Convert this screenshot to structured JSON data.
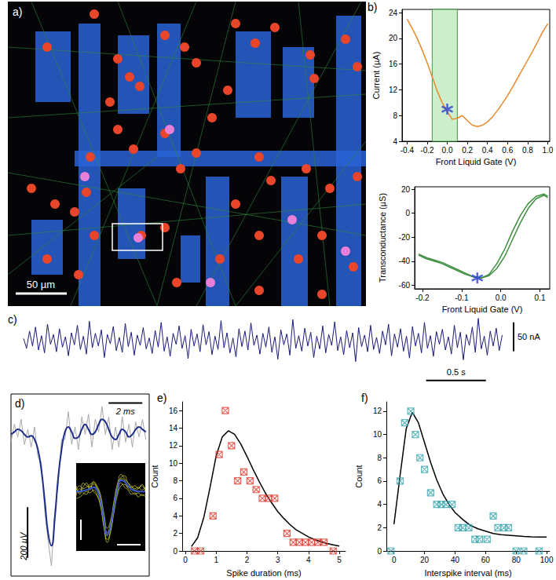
{
  "chart_data": [
    {
      "panel": "a)",
      "type": "image",
      "scale_bar_label": "50 µm"
    },
    {
      "panel": "b)",
      "type": "line",
      "x_label": "Front Liquid Gate (V)",
      "y_label": "Current (µA)",
      "x": [
        -0.4,
        -0.35,
        -0.3,
        -0.25,
        -0.2,
        -0.15,
        -0.1,
        -0.05,
        0,
        0.05,
        0.1,
        0.15,
        0.2,
        0.25,
        0.3,
        0.35,
        0.4,
        0.45,
        0.5,
        0.55,
        0.6,
        0.65,
        0.7,
        0.75,
        0.8,
        0.85,
        0.9,
        0.95,
        1.0
      ],
      "series": [
        {
          "color": "#e8892b",
          "values": [
            23.0,
            21.6,
            20.0,
            18.2,
            16.2,
            14.0,
            11.8,
            10.0,
            8.6,
            7.4,
            7.6,
            8.0,
            7.2,
            6.5,
            6.3,
            6.5,
            7.0,
            7.8,
            8.8,
            9.9,
            11.1,
            12.4,
            13.8,
            15.2,
            16.6,
            18.0,
            19.5,
            21.0,
            22.3
          ]
        }
      ],
      "shaded_range": [
        -0.15,
        0.1
      ],
      "shaded_color": "#cdeecb",
      "annotations": [
        {
          "x": 0,
          "y": 9,
          "marker": "asterisk",
          "color": "#2a3fd0"
        }
      ],
      "xlim": [
        -0.45,
        1.02
      ],
      "xticks": [
        -0.4,
        -0.2,
        {
          "value": 0,
          "label": "0.0"
        },
        0.2,
        0.4,
        0.6,
        0.8,
        {
          "value": 1,
          "label": "1.0"
        }
      ],
      "ylim": [
        4,
        24.5
      ],
      "yticks": [
        4,
        8,
        12,
        16,
        20,
        24
      ],
      "grid": false
    },
    {
      "type": "line",
      "x_label": "Front Liquid Gate (V)",
      "y_label": "Transconductance (µS)",
      "x": [
        -0.21,
        -0.19,
        -0.17,
        -0.15,
        -0.13,
        -0.11,
        -0.09,
        -0.07,
        -0.05,
        -0.03,
        -0.01,
        0.01,
        0.03,
        0.05,
        0.07,
        0.09,
        0.11,
        0.12
      ],
      "series": [
        {
          "color": "#3d8f3d",
          "values": [
            -34,
            -37,
            -39,
            -41,
            -44,
            -47,
            -50,
            -53,
            -54,
            -52,
            -46,
            -36,
            -22,
            -8,
            4,
            12,
            15,
            13
          ]
        },
        {
          "color": "#3d8f3d",
          "values": [
            -35,
            -38,
            -40,
            -42,
            -45,
            -48,
            -51,
            -53,
            -54,
            -51,
            -42,
            -30,
            -15,
            -2,
            8,
            14,
            16,
            14
          ]
        }
      ],
      "annotations": [
        {
          "x": -0.06,
          "y": -54,
          "marker": "asterisk",
          "color": "#2a3fd0"
        }
      ],
      "xlim": [
        -0.22,
        0.125
      ],
      "xticks": [
        -0.2,
        -0.1,
        {
          "value": 0,
          "label": "0.0"
        },
        0.1
      ],
      "ylim": [
        -63,
        22
      ],
      "yticks": [
        -60,
        -40,
        -20,
        0,
        20
      ],
      "grid": false
    },
    {
      "panel": "c)",
      "type": "line",
      "tick_labels": false,
      "x": [
        0,
        0.025,
        0.05,
        0.075,
        0.1,
        0.125,
        0.15,
        0.175,
        0.2,
        0.225,
        0.25,
        0.275,
        0.3,
        0.325,
        0.35,
        0.375,
        0.4,
        0.425,
        0.45,
        0.475,
        0.5,
        0.525,
        0.55,
        0.575,
        0.6,
        0.625,
        0.65,
        0.675,
        0.7,
        0.725,
        0.75,
        0.775,
        0.8,
        0.825,
        0.85,
        0.875,
        0.9,
        0.925,
        0.95,
        0.975,
        1,
        1.025,
        1.05,
        1.075,
        1.1,
        1.125,
        1.15,
        1.175,
        1.2,
        1.225,
        1.25,
        1.275,
        1.3,
        1.325,
        1.35,
        1.375,
        1.4,
        1.425,
        1.45,
        1.475,
        1.5,
        1.525,
        1.55,
        1.575,
        1.6,
        1.625,
        1.65,
        1.675,
        1.7,
        1.725,
        1.75,
        1.775,
        1.8,
        1.825,
        1.85,
        1.875,
        1.9,
        1.925,
        1.95,
        1.975,
        2,
        2.025,
        2.05,
        2.075,
        2.1,
        2.125,
        2.15,
        2.175,
        2.2,
        2.225,
        2.25,
        2.275,
        2.3,
        2.325,
        2.35,
        2.375,
        2.4,
        2.425,
        2.45,
        2.475,
        2.5,
        2.525,
        2.55,
        2.575,
        2.6,
        2.625,
        2.65,
        2.675,
        2.7,
        2.725,
        2.75,
        2.775,
        2.8,
        2.825,
        2.85,
        2.875,
        2.9,
        2.925,
        2.95,
        2.975,
        3,
        3.025,
        3.05,
        3.075,
        3.1,
        3.125,
        3.15,
        3.175,
        3.2,
        3.225,
        3.25,
        3.275,
        3.3,
        3.325,
        3.35,
        3.375,
        3.4,
        3.425,
        3.45,
        3.475,
        3.5,
        3.525,
        3.55,
        3.575,
        3.6,
        3.625,
        3.65,
        3.675,
        3.7,
        3.725,
        3.75,
        3.775,
        3.8,
        3.825,
        3.85,
        3.875,
        3.9,
        3.925,
        3.95,
        3.975,
        4
      ],
      "series": [
        {
          "color": "#1a1a78",
          "values": [
            5,
            -12,
            18,
            -8,
            25,
            -15,
            10,
            -20,
            30,
            -5,
            12,
            -18,
            22,
            -10,
            8,
            -25,
            15,
            -6,
            28,
            -14,
            9,
            -22,
            35,
            -11,
            14,
            -8,
            20,
            -28,
            12,
            -4,
            26,
            -16,
            7,
            -19,
            31,
            -9,
            16,
            -24,
            11,
            -7,
            24,
            -13,
            6,
            -21,
            19,
            -10,
            33,
            -17,
            8,
            -26,
            14,
            -5,
            27,
            -12,
            10,
            -30,
            21,
            -8,
            13,
            -18,
            29,
            -6,
            17,
            -23,
            9,
            -14,
            36,
            -11,
            15,
            -20,
            6,
            -27,
            22,
            -9,
            18,
            -15,
            32,
            -7,
            11,
            -22,
            14,
            -10,
            25,
            -19,
            8,
            -31,
            20,
            -6,
            13,
            -24,
            38,
            -12,
            10,
            -17,
            23,
            -8,
            16,
            -28,
            9,
            -13,
            27,
            -20,
            12,
            -7,
            34,
            -16,
            8,
            -23,
            19,
            -11,
            15,
            -35,
            24,
            -9,
            11,
            -18,
            28,
            -14,
            7,
            -21,
            18,
            -6,
            30,
            -25,
            13,
            -10,
            22,
            -17,
            9,
            -29,
            26,
            -8,
            14,
            -20,
            33,
            -12,
            10,
            -26,
            17,
            -5,
            21,
            -15,
            8,
            -22,
            28,
            -11,
            16,
            -32,
            12,
            -7,
            25,
            -19,
            40,
            -13,
            9,
            -24,
            18,
            -8,
            23,
            -16,
            11
          ]
        }
      ],
      "scale_bars": {
        "y": {
          "value": 50,
          "label": "50 nA"
        },
        "x": {
          "value": 0.5,
          "label": "0.5 s"
        }
      },
      "xlim": [
        0,
        4.2
      ],
      "ylim": [
        -75,
        45
      ]
    },
    {
      "panel": "d)",
      "type": "line",
      "tick_labels": false,
      "x": [
        0,
        0.2,
        0.4,
        0.6,
        0.8,
        1,
        1.2,
        1.4,
        1.6,
        1.8,
        2,
        2.2,
        2.4,
        2.6,
        2.8,
        3,
        3.2,
        3.4,
        3.6,
        3.8,
        4,
        4.2,
        4.4,
        4.6,
        4.8,
        5,
        5.2,
        5.4,
        5.6,
        5.8,
        6,
        6.2,
        6.4,
        6.6,
        6.8,
        7,
        7.2,
        7.4,
        7.6,
        7.8,
        8
      ],
      "series": [
        {
          "color": "#a8a8a8",
          "values": [
            -30,
            40,
            -10,
            60,
            -40,
            20,
            -50,
            30,
            -90,
            -110,
            -300,
            -420,
            -520,
            -300,
            -200,
            -20,
            -20,
            90,
            -40,
            30,
            -60,
            70,
            0,
            80,
            -50,
            60,
            10,
            110,
            0,
            70,
            -60,
            30,
            -50,
            70,
            -30,
            40,
            -50,
            50,
            -10,
            60,
            -20
          ]
        },
        {
          "color": "#1f2d8a",
          "values": [
            0,
            10,
            20,
            15,
            0,
            -10,
            -5,
            -20,
            -60,
            -140,
            -260,
            -390,
            -440,
            -330,
            -170,
            -60,
            10,
            30,
            10,
            -15,
            -10,
            20,
            40,
            20,
            0,
            10,
            40,
            60,
            50,
            20,
            -10,
            -20,
            0,
            20,
            10,
            -10,
            0,
            20,
            30,
            20,
            10
          ]
        }
      ],
      "scale_bars": {
        "x": {
          "value": 2,
          "label": "2 ms"
        },
        "y": {
          "value": 200,
          "label": "200 µV"
        }
      },
      "xlim": [
        0,
        8.2
      ],
      "ylim": [
        -560,
        160
      ],
      "inset": {
        "x": [
          0,
          0.2,
          0.4,
          0.6,
          0.8,
          1,
          1.2,
          1.4,
          1.6,
          1.8,
          2,
          2.2,
          2.4,
          2.6,
          2.8,
          3,
          3.2,
          3.4,
          3.6,
          3.8,
          4
        ],
        "traces": [
          [
            40,
            -20,
            30,
            60,
            10,
            70,
            40,
            -20,
            -150,
            -260,
            -200,
            -60,
            60,
            120,
            90,
            60,
            30,
            40,
            20,
            50,
            10
          ],
          [
            -30,
            20,
            -10,
            -20,
            40,
            0,
            -30,
            -100,
            -250,
            -360,
            -280,
            -140,
            -20,
            40,
            50,
            20,
            0,
            -20,
            -10,
            -30,
            -20
          ],
          [
            10,
            40,
            20,
            30,
            50,
            60,
            30,
            -40,
            -180,
            -290,
            -220,
            -80,
            40,
            100,
            110,
            60,
            40,
            20,
            30,
            10,
            30
          ],
          [
            -50,
            -40,
            -20,
            0,
            -10,
            10,
            -20,
            -90,
            -230,
            -340,
            -270,
            -120,
            0,
            60,
            30,
            10,
            -20,
            -10,
            -40,
            -20,
            -40
          ],
          [
            20,
            -10,
            60,
            40,
            30,
            50,
            20,
            -50,
            -190,
            -300,
            -230,
            -90,
            30,
            90,
            80,
            30,
            30,
            10,
            20,
            40,
            0
          ]
        ],
        "trace_color": "#e6e632",
        "mean": [
          0,
          0,
          5,
          10,
          20,
          30,
          10,
          -60,
          -200,
          -310,
          -240,
          -100,
          20,
          80,
          70,
          40,
          15,
          5,
          0,
          0,
          0
        ],
        "mean_color": "#3a5ad0",
        "xlim": [
          0,
          4
        ],
        "ylim": [
          -420,
          200
        ]
      }
    },
    {
      "panel": "e)",
      "type": "scatter",
      "x_label": "Spike duration (ms)",
      "y_label": "Count",
      "series": [
        {
          "type": "scatter",
          "marker": "square_x",
          "color": "#e03c31",
          "x": [
            0.3,
            0.5,
            0.9,
            1.1,
            1.3,
            1.5,
            1.7,
            1.9,
            2.1,
            2.3,
            2.5,
            2.7,
            2.9,
            3.3,
            3.5,
            3.7,
            3.9,
            4.1,
            4.3,
            4.5,
            4.8
          ],
          "values": [
            0,
            0,
            4,
            11,
            16,
            12,
            8,
            9,
            8,
            7,
            6,
            6,
            6,
            2,
            1,
            1,
            1,
            1,
            1,
            1,
            0
          ]
        },
        {
          "type": "line",
          "color": "#000000",
          "x": [
            0.2,
            0.4,
            0.6,
            0.8,
            1.0,
            1.2,
            1.4,
            1.6,
            1.8,
            2.0,
            2.2,
            2.4,
            2.6,
            2.8,
            3.0,
            3.2,
            3.4,
            3.6,
            3.8,
            4.0,
            4.2,
            4.4,
            4.6,
            4.8,
            5.0
          ],
          "values": [
            0.5,
            1.5,
            3.8,
            7.2,
            10.8,
            13.0,
            13.7,
            13.3,
            12.2,
            10.8,
            9.3,
            7.9,
            6.6,
            5.5,
            4.5,
            3.7,
            3.0,
            2.4,
            2.0,
            1.6,
            1.3,
            1.05,
            0.85,
            0.7,
            0.55
          ]
        }
      ],
      "xlim": [
        -0.1,
        5.2
      ],
      "xticks": [
        0,
        1,
        2,
        3,
        4,
        5
      ],
      "ylim": [
        0,
        17
      ],
      "yticks": [
        0,
        2,
        4,
        6,
        8,
        10,
        12,
        14,
        16
      ],
      "grid": false
    },
    {
      "panel": "f)",
      "type": "scatter",
      "x_label": "Interspike interval (ms)",
      "y_label": "Count",
      "series": [
        {
          "type": "scatter",
          "marker": "square_x",
          "color": "#3aa6b0",
          "x": [
            -2,
            4,
            7,
            11,
            14,
            17,
            20,
            24,
            28,
            31,
            34,
            38,
            42,
            45,
            49,
            53,
            56,
            61,
            65,
            68,
            72,
            75,
            80,
            85,
            95
          ],
          "values": [
            0,
            6,
            11,
            12,
            10,
            8,
            7,
            5,
            4,
            4,
            4,
            4,
            2,
            2,
            2,
            1,
            1,
            1,
            3,
            2,
            2,
            2,
            0,
            0,
            0
          ]
        },
        {
          "type": "line",
          "color": "#000000",
          "x": [
            0,
            4,
            8,
            12,
            16,
            20,
            24,
            28,
            32,
            36,
            40,
            45,
            50,
            55,
            60,
            65,
            70,
            75,
            80,
            85,
            90,
            95,
            100
          ],
          "values": [
            2.3,
            6.5,
            10.5,
            11.9,
            11.0,
            9.3,
            7.6,
            6.1,
            4.9,
            4.0,
            3.3,
            2.7,
            2.2,
            1.9,
            1.7,
            1.5,
            1.4,
            1.35,
            1.3,
            1.25,
            1.22,
            1.2,
            1.2
          ]
        }
      ],
      "xlim": [
        -5,
        102
      ],
      "xticks": [
        0,
        20,
        40,
        60,
        80,
        100
      ],
      "ylim": [
        0,
        12.8
      ],
      "yticks": [
        0,
        2,
        4,
        6,
        8,
        10,
        12
      ],
      "grid": false
    }
  ]
}
